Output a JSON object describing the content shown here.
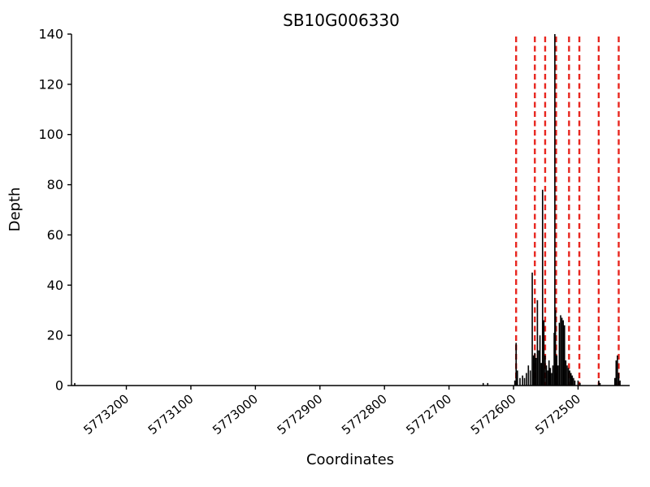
{
  "chart_data": {
    "type": "bar",
    "title": "SB10G006330",
    "xlabel": "Coordinates",
    "ylabel": "Depth",
    "x_axis_reversed": true,
    "xlim": [
      5773285,
      5772420
    ],
    "ylim": [
      0,
      140
    ],
    "x_ticks": [
      5773200,
      5773100,
      5773000,
      5772900,
      5772800,
      5772700,
      5772600,
      5772500
    ],
    "y_ticks": [
      0,
      20,
      40,
      60,
      80,
      100,
      120,
      140
    ],
    "grid": false,
    "colors": {
      "depth_bar": "#000000",
      "exon_boundary_dashed": "#e8261f",
      "axis": "#000000"
    },
    "exon_boundaries": [
      5772596,
      5772567,
      5772551,
      5772534,
      5772514,
      5772498,
      5772468,
      5772437
    ],
    "depth_profile": [
      [
        5773280,
        1
      ],
      [
        5772647,
        1
      ],
      [
        5772640,
        1
      ],
      [
        5772598,
        2
      ],
      [
        5772596,
        17
      ],
      [
        5772594,
        6
      ],
      [
        5772590,
        3
      ],
      [
        5772586,
        4
      ],
      [
        5772583,
        3
      ],
      [
        5772580,
        5
      ],
      [
        5772577,
        8
      ],
      [
        5772574,
        6
      ],
      [
        5772571,
        45
      ],
      [
        5772569,
        12
      ],
      [
        5772567,
        13
      ],
      [
        5772565,
        11
      ],
      [
        5772563,
        34
      ],
      [
        5772561,
        14
      ],
      [
        5772559,
        20
      ],
      [
        5772557,
        9
      ],
      [
        5772555,
        78
      ],
      [
        5772553,
        26
      ],
      [
        5772551,
        12
      ],
      [
        5772549,
        8
      ],
      [
        5772547,
        6
      ],
      [
        5772545,
        10
      ],
      [
        5772543,
        7
      ],
      [
        5772541,
        5
      ],
      [
        5772539,
        8
      ],
      [
        5772537,
        21
      ],
      [
        5772536,
        140
      ],
      [
        5772535,
        30
      ],
      [
        5772533,
        12
      ],
      [
        5772531,
        8
      ],
      [
        5772529,
        25
      ],
      [
        5772527,
        28
      ],
      [
        5772525,
        27
      ],
      [
        5772523,
        26
      ],
      [
        5772521,
        24
      ],
      [
        5772519,
        10
      ],
      [
        5772517,
        8
      ],
      [
        5772515,
        7
      ],
      [
        5772513,
        6
      ],
      [
        5772511,
        5
      ],
      [
        5772509,
        4
      ],
      [
        5772507,
        3
      ],
      [
        5772505,
        2
      ],
      [
        5772500,
        2
      ],
      [
        5772497,
        1
      ],
      [
        5772468,
        2
      ],
      [
        5772466,
        1
      ],
      [
        5772443,
        3
      ],
      [
        5772441,
        10
      ],
      [
        5772439,
        12
      ],
      [
        5772437,
        5
      ],
      [
        5772435,
        2
      ]
    ]
  }
}
